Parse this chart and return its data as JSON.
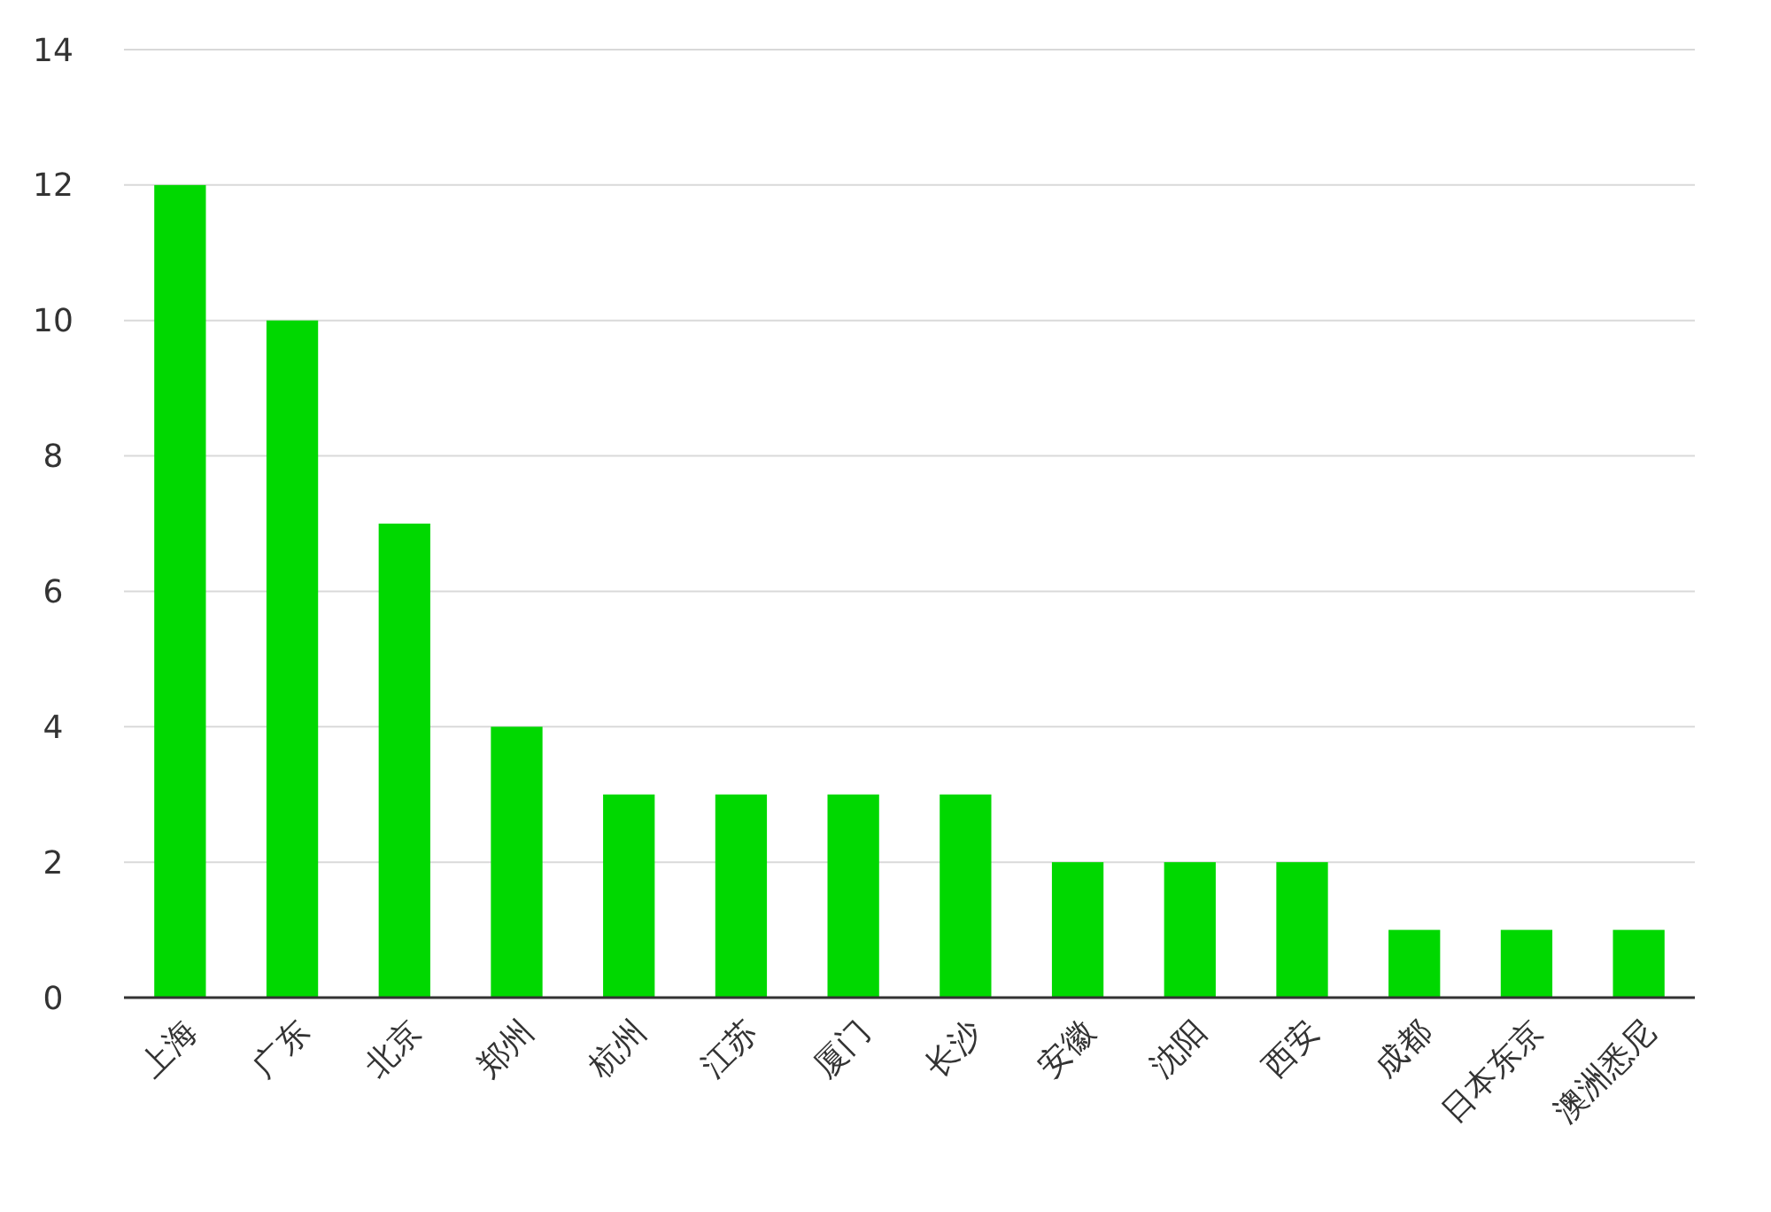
{
  "chart_data": {
    "type": "bar",
    "categories": [
      "上海",
      "广东",
      "北京",
      "郑州",
      "杭州",
      "江苏",
      "厦门",
      "长沙",
      "安徽",
      "沈阳",
      "西安",
      "成都",
      "日本东京",
      "澳洲悉尼"
    ],
    "values": [
      12,
      10,
      7,
      4,
      3,
      3,
      3,
      3,
      2,
      2,
      2,
      1,
      1,
      1
    ],
    "color": "#00d800",
    "ylim": [
      0,
      14
    ],
    "yticks": [
      0,
      2,
      4,
      6,
      8,
      10,
      12,
      14
    ],
    "grid": "y"
  }
}
